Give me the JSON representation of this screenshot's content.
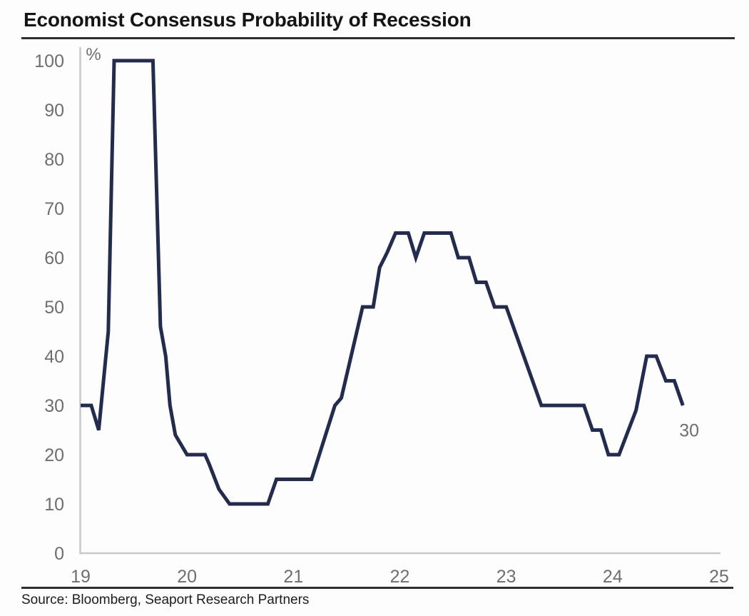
{
  "page": {
    "title": "Economist Consensus Probability of Recession",
    "source": "Source: Bloomberg, Seaport Research Partners"
  },
  "chart_data": {
    "type": "line",
    "title": "Economist Consensus Probability of Recession",
    "xlabel": "",
    "ylabel": "%",
    "unit_label": "%",
    "xlim": [
      19,
      25
    ],
    "ylim": [
      0,
      100
    ],
    "xticks": [
      19,
      20,
      21,
      22,
      23,
      24,
      25
    ],
    "yticks": [
      0,
      10,
      20,
      30,
      40,
      50,
      60,
      70,
      80,
      90,
      100
    ],
    "grid": false,
    "legend": "none",
    "line_color": "#232c4d",
    "axis_color": "#c9c9c9",
    "tick_label_color": "#6e6e6e",
    "series": [
      {
        "name": "Economist consensus probability of recession (%)",
        "points": [
          [
            19.0,
            30
          ],
          [
            19.1,
            30
          ],
          [
            19.17,
            25
          ],
          [
            19.26,
            45
          ],
          [
            19.315,
            100
          ],
          [
            19.68,
            100
          ],
          [
            19.75,
            46
          ],
          [
            19.8,
            40
          ],
          [
            19.84,
            30
          ],
          [
            19.89,
            24
          ],
          [
            20.0,
            20
          ],
          [
            20.17,
            20
          ],
          [
            20.21,
            18
          ],
          [
            20.3,
            13
          ],
          [
            20.4,
            10
          ],
          [
            20.76,
            10
          ],
          [
            20.84,
            15
          ],
          [
            21.17,
            15
          ],
          [
            21.39,
            30
          ],
          [
            21.45,
            31.5
          ],
          [
            21.65,
            50
          ],
          [
            21.75,
            50
          ],
          [
            21.81,
            58
          ],
          [
            21.88,
            61
          ],
          [
            21.96,
            65
          ],
          [
            22.08,
            65
          ],
          [
            22.15,
            60
          ],
          [
            22.23,
            65
          ],
          [
            22.48,
            65
          ],
          [
            22.55,
            60
          ],
          [
            22.65,
            60
          ],
          [
            22.72,
            55
          ],
          [
            22.81,
            55
          ],
          [
            22.89,
            50
          ],
          [
            23.0,
            50
          ],
          [
            23.33,
            30
          ],
          [
            23.73,
            30
          ],
          [
            23.81,
            25
          ],
          [
            23.89,
            25
          ],
          [
            23.96,
            20
          ],
          [
            24.06,
            20
          ],
          [
            24.22,
            29
          ],
          [
            24.32,
            40
          ],
          [
            24.41,
            40
          ],
          [
            24.5,
            35
          ],
          [
            24.58,
            35
          ],
          [
            24.66,
            30
          ]
        ]
      }
    ],
    "end_annotation": {
      "text": "30",
      "x": 24.72,
      "y": 25
    },
    "source": "Source: Bloomberg, Seaport Research Partners"
  }
}
